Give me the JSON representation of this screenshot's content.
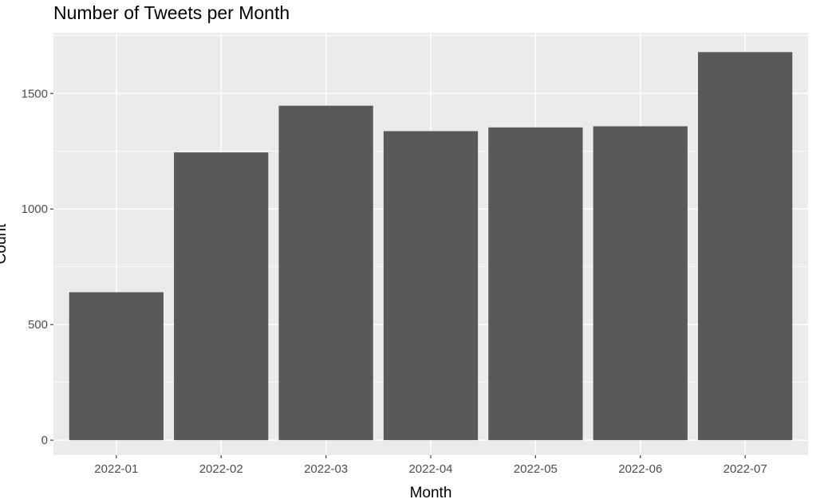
{
  "chart_data": {
    "type": "bar",
    "title": "Number of Tweets per Month",
    "xlabel": "Month",
    "ylabel": "Count",
    "categories": [
      "2022-01",
      "2022-02",
      "2022-03",
      "2022-04",
      "2022-05",
      "2022-06",
      "2022-07"
    ],
    "values": [
      640,
      1245,
      1447,
      1337,
      1353,
      1358,
      1679
    ],
    "ylim": [
      -65,
      1763
    ],
    "yticks": [
      0,
      500,
      1000,
      1500
    ],
    "grid": true,
    "legend": "none",
    "colors": {
      "panel": "#ebebeb",
      "grid_major": "#ffffff",
      "bar": "#595959"
    }
  }
}
